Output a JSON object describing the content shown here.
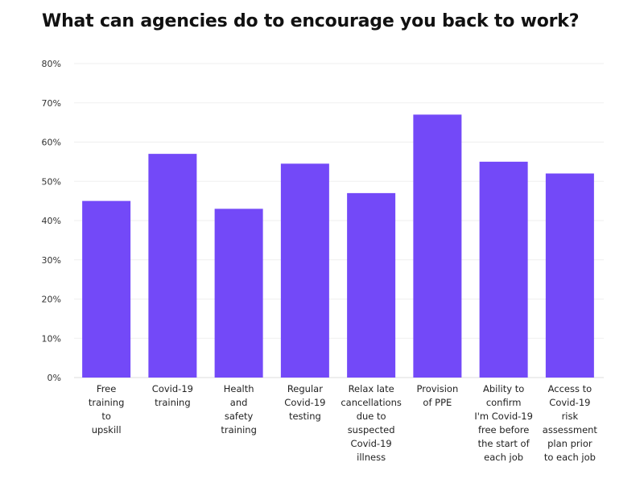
{
  "chart_data": {
    "type": "bar",
    "title": "What can agencies do to encourage you back to work?",
    "xlabel": "",
    "ylabel": "",
    "ylim": [
      0,
      80
    ],
    "yticks": [
      "0%",
      "10%",
      "20%",
      "30%",
      "40%",
      "50%",
      "60%",
      "70%",
      "80%"
    ],
    "categories": [
      [
        "Free",
        "training",
        "to",
        "upskill"
      ],
      [
        "Covid-19",
        "training"
      ],
      [
        "Health",
        "and",
        "safety",
        "training"
      ],
      [
        "Regular",
        "Covid-19",
        "testing"
      ],
      [
        "Relax late",
        "cancellations",
        "due to",
        "suspected",
        "Covid-19",
        "illness"
      ],
      [
        "Provision",
        "of PPE"
      ],
      [
        "Ability to",
        "confirm",
        "I'm Covid-19",
        "free before",
        "the start of",
        "each job"
      ],
      [
        "Access to",
        "Covid-19",
        "risk",
        "assessment",
        "plan prior",
        "to each job"
      ]
    ],
    "values": [
      45,
      57,
      43,
      54.5,
      47,
      67,
      55,
      52
    ],
    "grid": true,
    "legend": "none",
    "colors": {
      "bar": "#7349f8",
      "grid": "#efefef",
      "axis": "#dcdcdc"
    }
  }
}
